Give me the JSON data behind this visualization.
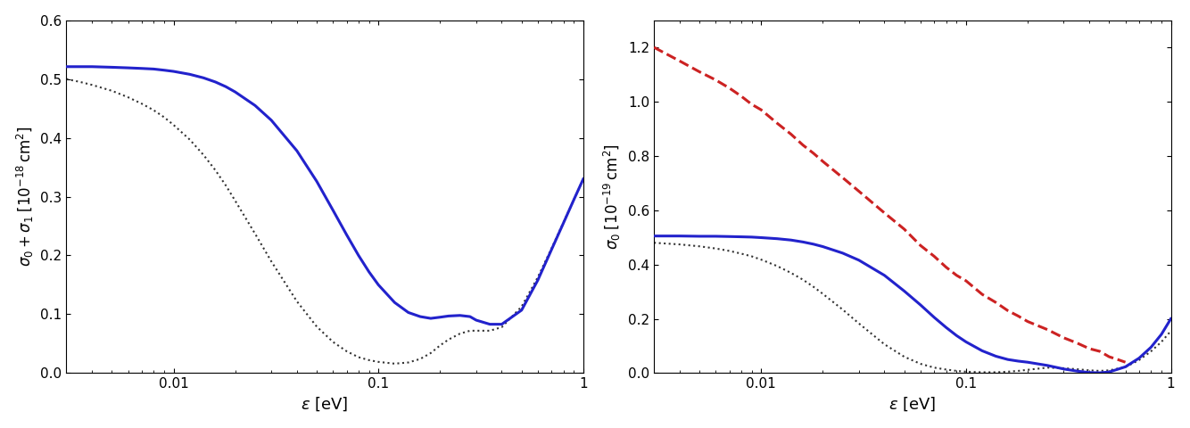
{
  "left_plot": {
    "ylabel": "$\\sigma_0+\\sigma_1\\;[10^{-18}\\,\\mathrm{cm}^2]$",
    "xlabel": "$\\varepsilon$ [eV]",
    "ylim": [
      0.0,
      0.6
    ],
    "xlim": [
      0.003,
      1.0
    ],
    "yticks": [
      0.0,
      0.1,
      0.2,
      0.3,
      0.4,
      0.5,
      0.6
    ],
    "solid_color": "#2222cc",
    "dotted_color": "#333333",
    "solid_x": [
      0.003,
      0.0035,
      0.004,
      0.005,
      0.006,
      0.007,
      0.008,
      0.009,
      0.01,
      0.012,
      0.014,
      0.016,
      0.018,
      0.02,
      0.025,
      0.03,
      0.04,
      0.05,
      0.06,
      0.07,
      0.08,
      0.09,
      0.1,
      0.12,
      0.14,
      0.16,
      0.18,
      0.2,
      0.22,
      0.25,
      0.28,
      0.3,
      0.35,
      0.4,
      0.5,
      0.6,
      0.7,
      0.8,
      0.9,
      1.0
    ],
    "solid_y": [
      0.521,
      0.521,
      0.521,
      0.52,
      0.519,
      0.518,
      0.517,
      0.515,
      0.513,
      0.508,
      0.502,
      0.495,
      0.487,
      0.478,
      0.455,
      0.43,
      0.378,
      0.326,
      0.277,
      0.235,
      0.2,
      0.172,
      0.15,
      0.12,
      0.103,
      0.096,
      0.093,
      0.095,
      0.097,
      0.098,
      0.096,
      0.09,
      0.083,
      0.083,
      0.107,
      0.158,
      0.21,
      0.255,
      0.295,
      0.33
    ],
    "dotted_x": [
      0.003,
      0.0035,
      0.004,
      0.005,
      0.006,
      0.007,
      0.008,
      0.009,
      0.01,
      0.012,
      0.014,
      0.016,
      0.018,
      0.02,
      0.025,
      0.03,
      0.04,
      0.05,
      0.06,
      0.07,
      0.08,
      0.09,
      0.1,
      0.12,
      0.14,
      0.16,
      0.18,
      0.2,
      0.22,
      0.25,
      0.28,
      0.3,
      0.35,
      0.4,
      0.5,
      0.6,
      0.7,
      0.8,
      0.9,
      1.0
    ],
    "dotted_y": [
      0.5,
      0.495,
      0.49,
      0.48,
      0.469,
      0.458,
      0.447,
      0.435,
      0.422,
      0.397,
      0.371,
      0.345,
      0.319,
      0.293,
      0.237,
      0.19,
      0.122,
      0.079,
      0.053,
      0.037,
      0.027,
      0.022,
      0.019,
      0.016,
      0.018,
      0.024,
      0.034,
      0.047,
      0.057,
      0.067,
      0.072,
      0.072,
      0.072,
      0.078,
      0.113,
      0.163,
      0.212,
      0.256,
      0.295,
      0.33
    ]
  },
  "right_plot": {
    "ylabel": "$\\sigma_0\\;[10^{-19}\\,\\mathrm{cm}^2]$",
    "xlabel": "$\\varepsilon$ [eV]",
    "ylim": [
      0.0,
      1.3
    ],
    "xlim": [
      0.003,
      1.0
    ],
    "yticks": [
      0.0,
      0.2,
      0.4,
      0.6,
      0.8,
      1.0,
      1.2
    ],
    "solid_color": "#2222cc",
    "dotted_color": "#333333",
    "dashed_color": "#cc2222",
    "solid_x": [
      0.003,
      0.004,
      0.005,
      0.006,
      0.007,
      0.008,
      0.009,
      0.01,
      0.012,
      0.014,
      0.016,
      0.018,
      0.02,
      0.025,
      0.03,
      0.04,
      0.05,
      0.06,
      0.07,
      0.08,
      0.09,
      0.1,
      0.12,
      0.14,
      0.16,
      0.18,
      0.2,
      0.25,
      0.3,
      0.35,
      0.4,
      0.45,
      0.5,
      0.6,
      0.7,
      0.8,
      0.9,
      1.0
    ],
    "solid_y": [
      0.505,
      0.505,
      0.504,
      0.504,
      0.503,
      0.502,
      0.501,
      0.499,
      0.495,
      0.49,
      0.483,
      0.475,
      0.466,
      0.442,
      0.416,
      0.36,
      0.302,
      0.251,
      0.205,
      0.168,
      0.138,
      0.115,
      0.082,
      0.062,
      0.05,
      0.044,
      0.04,
      0.028,
      0.015,
      0.007,
      0.002,
      0.001,
      0.004,
      0.023,
      0.055,
      0.095,
      0.143,
      0.2
    ],
    "dotted_x": [
      0.003,
      0.004,
      0.005,
      0.006,
      0.007,
      0.008,
      0.009,
      0.01,
      0.012,
      0.014,
      0.016,
      0.018,
      0.02,
      0.025,
      0.03,
      0.04,
      0.05,
      0.06,
      0.07,
      0.08,
      0.09,
      0.1,
      0.12,
      0.14,
      0.16,
      0.18,
      0.2,
      0.25,
      0.3,
      0.35,
      0.4,
      0.45,
      0.5,
      0.6,
      0.7,
      0.8,
      0.9,
      1.0
    ],
    "dotted_y": [
      0.48,
      0.474,
      0.467,
      0.459,
      0.45,
      0.44,
      0.43,
      0.418,
      0.394,
      0.369,
      0.344,
      0.318,
      0.292,
      0.234,
      0.183,
      0.106,
      0.06,
      0.034,
      0.02,
      0.013,
      0.008,
      0.005,
      0.003,
      0.003,
      0.005,
      0.008,
      0.012,
      0.02,
      0.018,
      0.014,
      0.01,
      0.008,
      0.01,
      0.022,
      0.048,
      0.08,
      0.115,
      0.155
    ],
    "dashed_x": [
      0.003,
      0.004,
      0.005,
      0.006,
      0.007,
      0.008,
      0.009,
      0.01,
      0.012,
      0.014,
      0.016,
      0.018,
      0.02,
      0.025,
      0.03,
      0.04,
      0.05,
      0.06,
      0.07,
      0.08,
      0.09,
      0.1,
      0.12,
      0.14,
      0.16,
      0.18,
      0.2,
      0.25,
      0.3,
      0.35,
      0.4,
      0.45,
      0.5,
      0.55,
      0.6
    ],
    "dashed_y": [
      1.2,
      1.15,
      1.11,
      1.08,
      1.05,
      1.02,
      0.99,
      0.97,
      0.92,
      0.88,
      0.84,
      0.81,
      0.78,
      0.72,
      0.67,
      0.59,
      0.53,
      0.47,
      0.43,
      0.39,
      0.36,
      0.34,
      0.29,
      0.26,
      0.23,
      0.21,
      0.19,
      0.16,
      0.13,
      0.11,
      0.09,
      0.08,
      0.06,
      0.05,
      0.04
    ]
  },
  "background_color": "#ffffff"
}
